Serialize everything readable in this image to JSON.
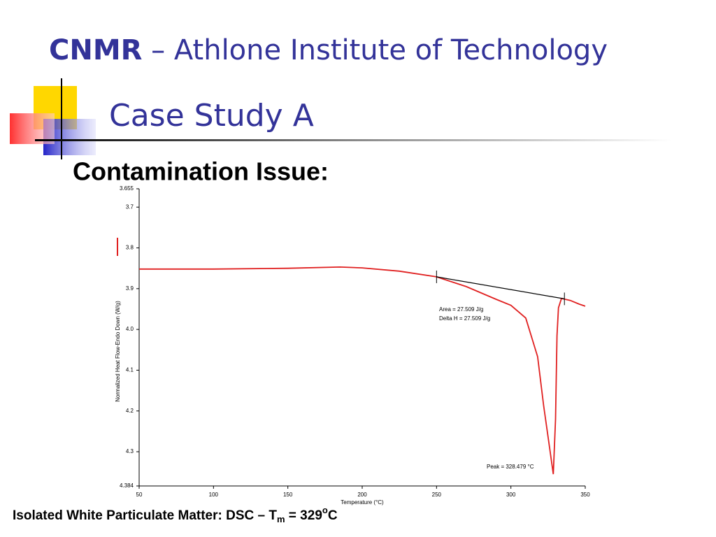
{
  "slide": {
    "title_bold": "CNMR",
    "title_rest": " – Athlone Institute of Technology",
    "subtitle": "Case Study A",
    "heading": "Contamination Issue:",
    "footer": {
      "text": "Isolated White Particulate Matter:  DSC – T",
      "subscript": "m",
      "value": " = 329",
      "superscript": "o",
      "unit": "C"
    }
  },
  "chart_data": {
    "type": "line",
    "x_label": "Temperature (°C)",
    "y_label": "Normalized Heat Flow-Endo Down (W/g)",
    "x": [
      50,
      100,
      150,
      185,
      200,
      225,
      250,
      270,
      290,
      300,
      310,
      318,
      322,
      326,
      328.5,
      330,
      331,
      332,
      334,
      340,
      346,
      350
    ],
    "values": [
      3.852,
      3.852,
      3.85,
      3.847,
      3.849,
      3.857,
      3.871,
      3.895,
      3.926,
      3.941,
      3.972,
      4.067,
      4.187,
      4.29,
      4.355,
      4.221,
      4.015,
      3.947,
      3.924,
      3.929,
      3.938,
      3.943
    ],
    "color": "#e02020",
    "baseline": {
      "x": [
        250,
        336
      ],
      "values": [
        3.871,
        3.925
      ],
      "color": "#000000"
    },
    "xlim": [
      50,
      350
    ],
    "xticks": [
      50,
      100,
      150,
      200,
      250,
      300,
      350
    ],
    "ylim": [
      3.655,
      4.384
    ],
    "y_inverted": true,
    "yticks": [
      3.655,
      3.7,
      3.8,
      3.9,
      {
        "value": 4,
        "label": "4.0"
      },
      4.1,
      4.2,
      4.3,
      4.384
    ],
    "annotations": [
      "Area = 27.509 J/g",
      "Delta H = 27.509 J/g",
      "Peak = 328.479 °C"
    ]
  }
}
